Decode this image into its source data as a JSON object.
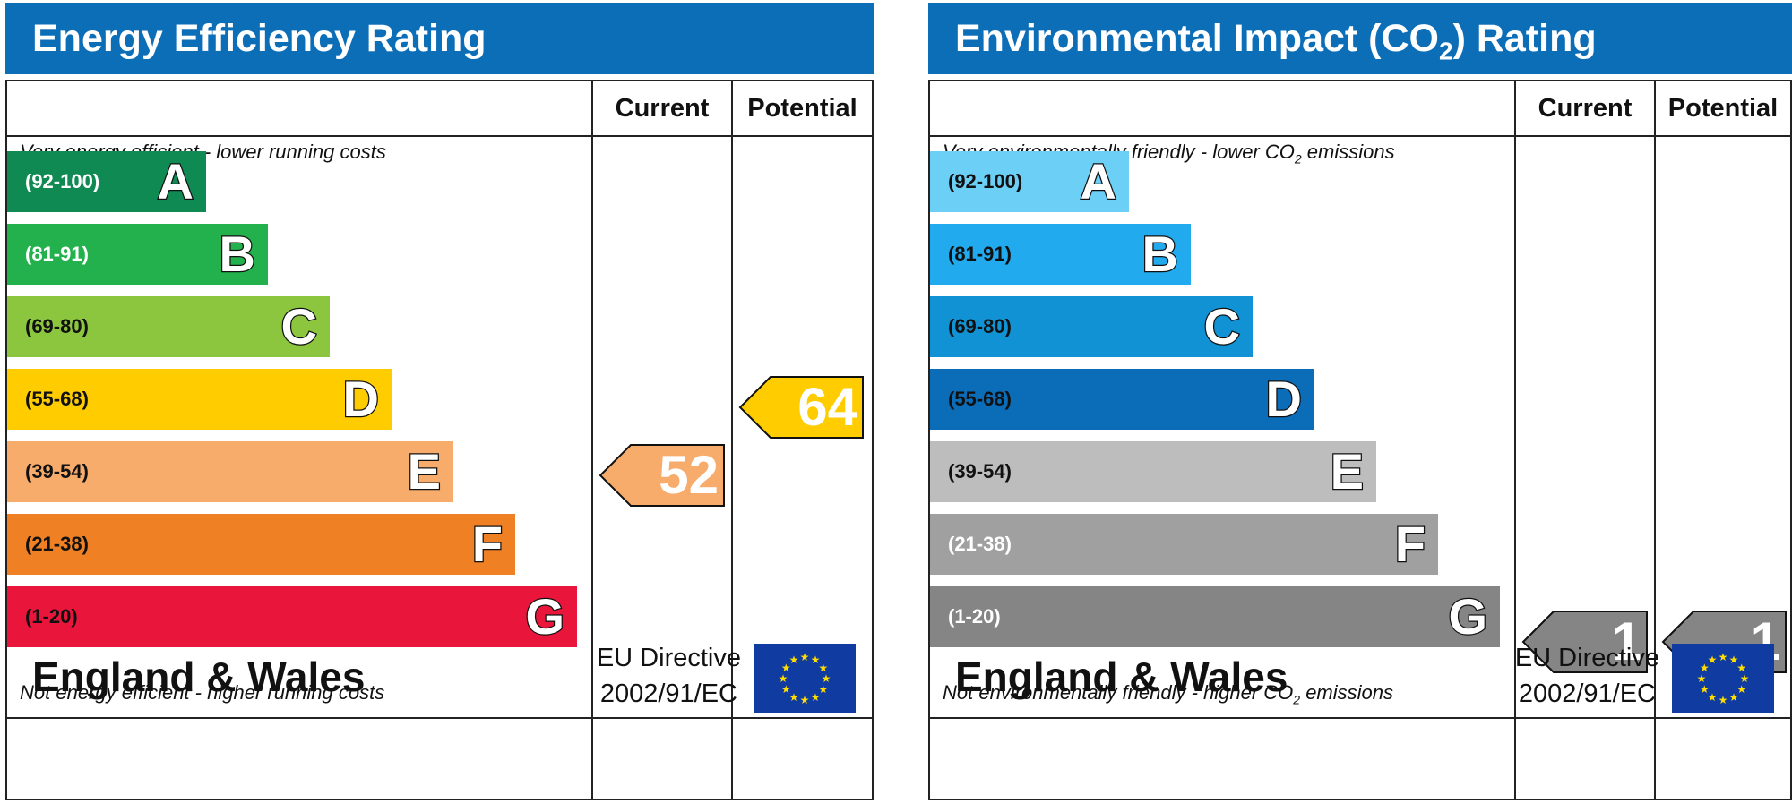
{
  "chart_data": [
    {
      "type": "bar",
      "title": "Energy Efficiency Rating",
      "columns": [
        "Current",
        "Potential"
      ],
      "top_note": "Very energy efficient - lower running costs",
      "bottom_note": "Not energy efficient - higher running costs",
      "bands": [
        {
          "range": "(92-100)",
          "letter": "A",
          "color": "#0f8a53",
          "range_color": "#ffffff"
        },
        {
          "range": "(81-91)",
          "letter": "B",
          "color": "#22b14c",
          "range_color": "#ffffff"
        },
        {
          "range": "(69-80)",
          "letter": "C",
          "color": "#8cc63f",
          "range_color": "#111111"
        },
        {
          "range": "(55-68)",
          "letter": "D",
          "color": "#ffcc00",
          "range_color": "#111111"
        },
        {
          "range": "(39-54)",
          "letter": "E",
          "color": "#f7ac6b",
          "range_color": "#111111"
        },
        {
          "range": "(21-38)",
          "letter": "F",
          "color": "#ef8023",
          "range_color": "#111111"
        },
        {
          "range": "(1-20)",
          "letter": "G",
          "color": "#e9153b",
          "range_color": "#111111"
        }
      ],
      "current": {
        "value": 52,
        "band": "E",
        "color": "#f7ac6b"
      },
      "potential": {
        "value": 64,
        "band": "D",
        "color": "#ffcc00"
      },
      "footer": {
        "country": "England & Wales",
        "directive_line1": "EU Directive",
        "directive_line2": "2002/91/EC"
      }
    },
    {
      "type": "bar",
      "title": "Environmental Impact (CO",
      "title_sub": "2",
      "title_end": ") Rating",
      "columns": [
        "Current",
        "Potential"
      ],
      "top_note": "Very environmentally friendly - lower CO",
      "top_note_end": " emissions",
      "bottom_note": "Not environmentally friendly - higher CO",
      "bottom_note_end": " emissions",
      "note_sub": "2",
      "bands": [
        {
          "range": "(92-100)",
          "letter": "A",
          "color": "#6ccff6",
          "range_color": "#111111"
        },
        {
          "range": "(81-91)",
          "letter": "B",
          "color": "#22aaee",
          "range_color": "#111111"
        },
        {
          "range": "(69-80)",
          "letter": "C",
          "color": "#1192d4",
          "range_color": "#111111"
        },
        {
          "range": "(55-68)",
          "letter": "D",
          "color": "#0b6cb8",
          "range_color": "#111111"
        },
        {
          "range": "(39-54)",
          "letter": "E",
          "color": "#bdbdbd",
          "range_color": "#111111"
        },
        {
          "range": "(21-38)",
          "letter": "F",
          "color": "#a0a0a0",
          "range_color": "#ffffff"
        },
        {
          "range": "(1-20)",
          "letter": "G",
          "color": "#858585",
          "range_color": "#ffffff"
        }
      ],
      "current": {
        "value": 1,
        "band": "G",
        "color": "#858585"
      },
      "potential": {
        "value": 1,
        "band": "G",
        "color": "#858585"
      },
      "footer": {
        "country": "England & Wales",
        "directive_line1": "EU Directive",
        "directive_line2": "2002/91/EC"
      }
    }
  ]
}
